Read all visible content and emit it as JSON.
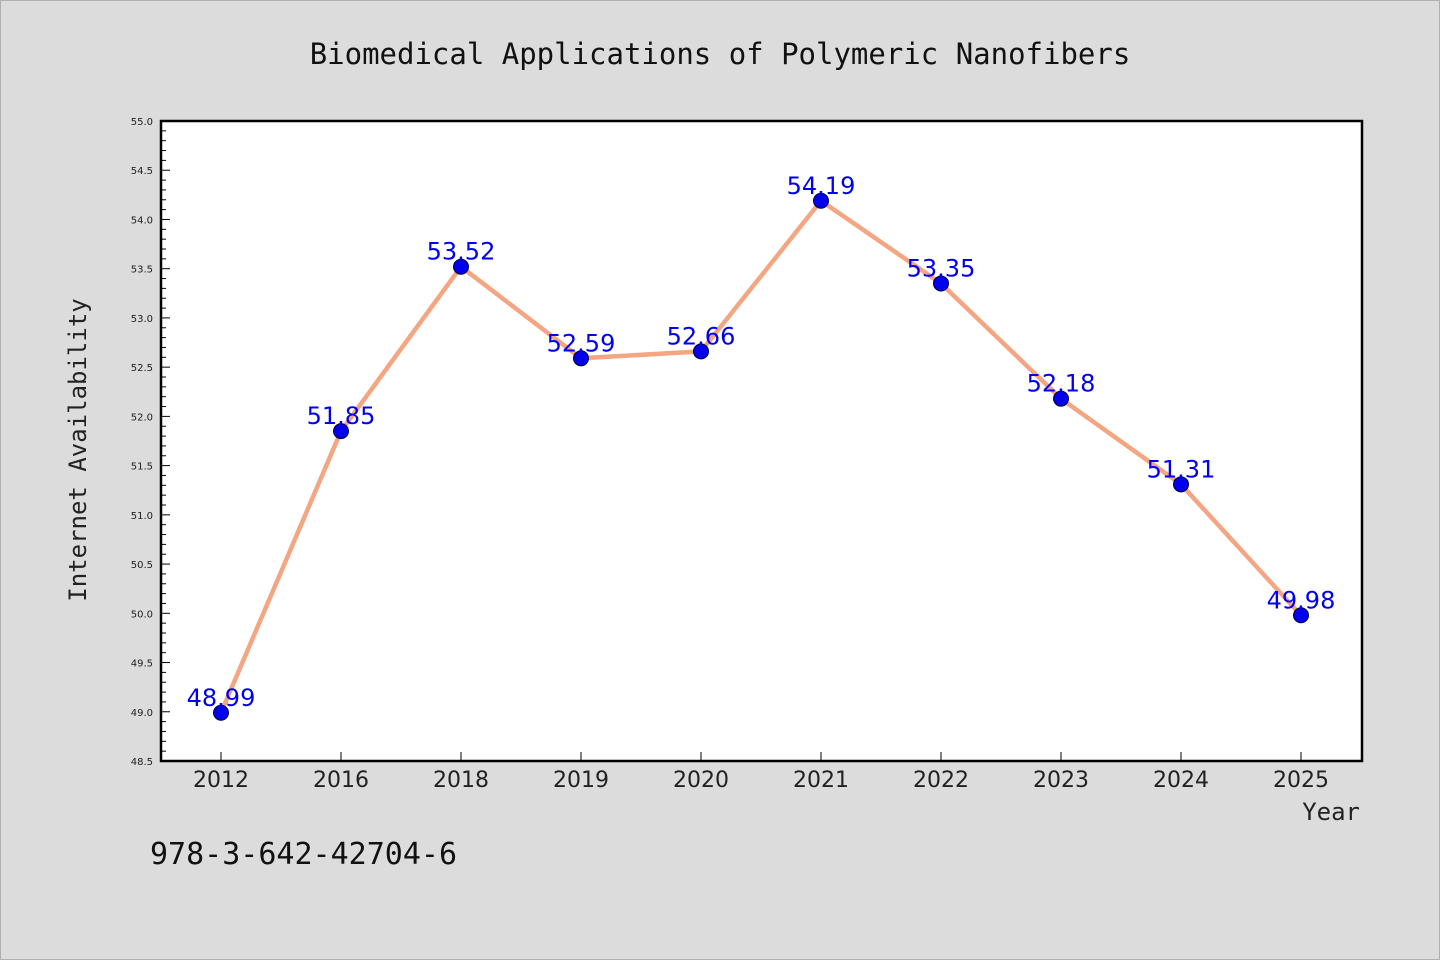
{
  "chart_data": {
    "type": "line",
    "title": "Biomedical Applications of Polymeric Nanofibers",
    "xlabel": "Year",
    "ylabel": "Internet Availability",
    "categories": [
      "2012",
      "2016",
      "2018",
      "2019",
      "2020",
      "2021",
      "2022",
      "2023",
      "2024",
      "2025"
    ],
    "values": [
      48.99,
      51.85,
      53.52,
      52.59,
      52.66,
      54.19,
      53.35,
      52.18,
      51.31,
      49.98
    ],
    "data_labels": [
      "48.99",
      "51.85",
      "53.52",
      "52.59",
      "52.66",
      "54.19",
      "53.35",
      "52.18",
      "51.31",
      "49.98"
    ],
    "ylim": [
      48.5,
      55.0
    ],
    "yticks": [
      "48.5",
      "49.0",
      "49.5",
      "50.0",
      "50.5",
      "51.0",
      "51.5",
      "52.0",
      "52.5",
      "53.0",
      "53.5",
      "54.0",
      "54.5",
      "55.0"
    ],
    "grid": false,
    "legend": "none",
    "line_color": "#f4a582",
    "marker_color": "#0000ee"
  },
  "footer": {
    "isbn": "978-3-642-42704-6"
  }
}
